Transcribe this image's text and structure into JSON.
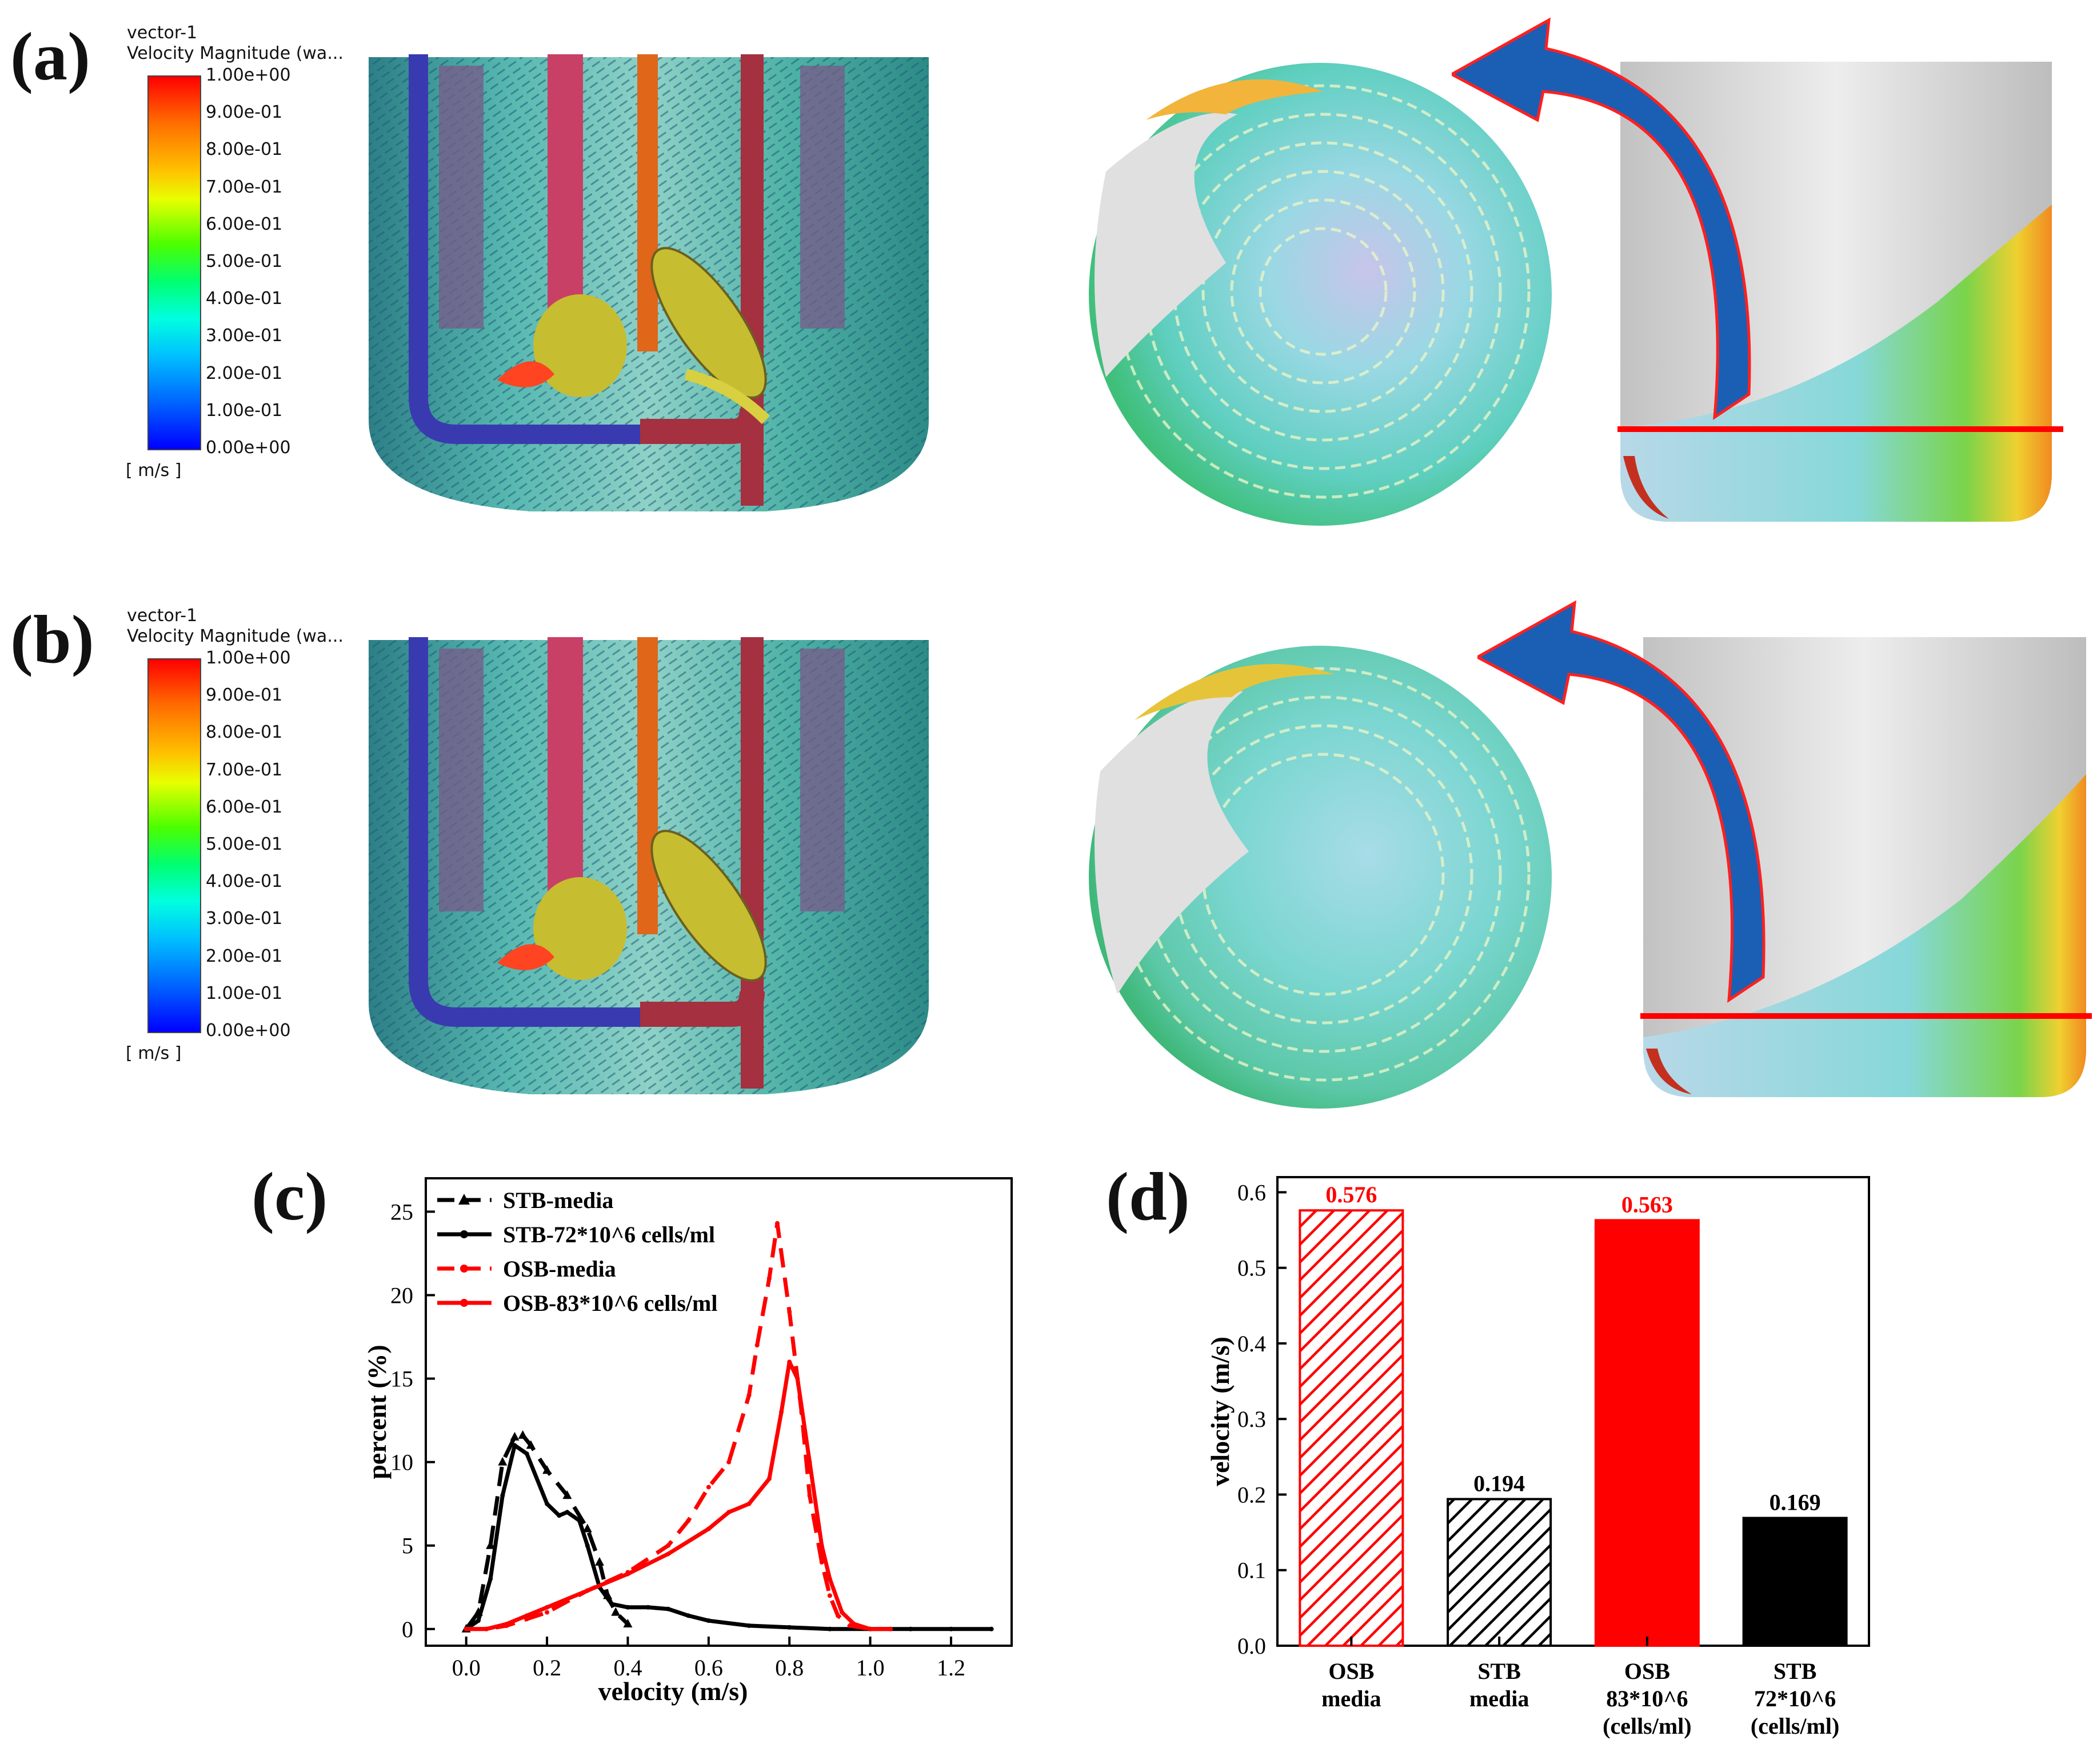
{
  "panels": {
    "a": {
      "label": "(a)"
    },
    "b": {
      "label": "(b)"
    },
    "c": {
      "label": "(c)"
    },
    "d": {
      "label": "(d)"
    }
  },
  "colorbar": {
    "title_line1": "vector-1",
    "title_line2": "Velocity Magnitude (wa...",
    "ticks": [
      "1.00e+00",
      "9.00e-01",
      "8.00e-01",
      "7.00e-01",
      "6.00e-01",
      "5.00e-01",
      "4.00e-01",
      "3.00e-01",
      "2.00e-01",
      "1.00e-01",
      "0.00e+00"
    ],
    "unit": "[ m/s ]"
  },
  "colors": {
    "black": "#000000",
    "red": "#ff0000",
    "arrow_blue": "#1a5fb4"
  },
  "chart_data": [
    {
      "id": "c",
      "type": "line",
      "xlabel": "velocity (m/s)",
      "ylabel": "percent (%)",
      "xlim": [
        -0.1,
        1.35
      ],
      "ylim": [
        -1,
        27
      ],
      "xticks": [
        "0.0",
        "0.2",
        "0.4",
        "0.6",
        "0.8",
        "1.0",
        "1.2"
      ],
      "yticks": [
        "0",
        "5",
        "10",
        "15",
        "20",
        "25"
      ],
      "series": [
        {
          "name": "STB-media",
          "color": "#000000",
          "style": "dashed-triangle",
          "x": [
            0,
            0.03,
            0.06,
            0.09,
            0.12,
            0.14,
            0.16,
            0.2,
            0.25,
            0.3,
            0.33,
            0.35,
            0.37,
            0.4
          ],
          "y": [
            0,
            1,
            5,
            10,
            11.5,
            11.6,
            11,
            9.5,
            8,
            6,
            4,
            2,
            1,
            0.3
          ]
        },
        {
          "name": "STB-72*10^6 cells/ml",
          "color": "#000000",
          "style": "solid",
          "x": [
            0,
            0.03,
            0.06,
            0.09,
            0.12,
            0.15,
            0.2,
            0.23,
            0.25,
            0.28,
            0.3,
            0.33,
            0.36,
            0.4,
            0.45,
            0.5,
            0.55,
            0.6,
            0.7,
            0.8,
            0.9,
            1.0,
            1.1,
            1.2,
            1.3
          ],
          "y": [
            0,
            0.5,
            3,
            8,
            11,
            10.5,
            7.5,
            6.8,
            7,
            6.5,
            5,
            2.5,
            1.5,
            1.3,
            1.3,
            1.2,
            0.8,
            0.5,
            0.2,
            0.1,
            0,
            0,
            0,
            0,
            0
          ]
        },
        {
          "name": "OSB-media",
          "color": "#ff0000",
          "style": "dashed",
          "x": [
            0,
            0.05,
            0.1,
            0.15,
            0.2,
            0.3,
            0.4,
            0.5,
            0.55,
            0.6,
            0.65,
            0.7,
            0.72,
            0.75,
            0.77,
            0.8,
            0.83,
            0.85,
            0.88,
            0.9,
            0.92,
            0.95,
            1.0,
            1.05
          ],
          "y": [
            0,
            0,
            0.2,
            0.6,
            1,
            2.3,
            3.4,
            5,
            6.5,
            8.5,
            10,
            14,
            17,
            21,
            24.3,
            19,
            13,
            8,
            4,
            2,
            0.8,
            0.2,
            0,
            0
          ]
        },
        {
          "name": "OSB-83*10^6 cells/ml",
          "color": "#ff0000",
          "style": "solid-dot",
          "x": [
            0,
            0.05,
            0.1,
            0.15,
            0.2,
            0.3,
            0.4,
            0.5,
            0.6,
            0.65,
            0.7,
            0.75,
            0.78,
            0.8,
            0.82,
            0.85,
            0.88,
            0.9,
            0.93,
            0.96,
            1.0,
            1.05
          ],
          "y": [
            0,
            0,
            0.3,
            0.8,
            1.3,
            2.3,
            3.3,
            4.5,
            6,
            7,
            7.5,
            9,
            13,
            16,
            15,
            10,
            5,
            3,
            1,
            0.3,
            0,
            0
          ]
        }
      ]
    },
    {
      "id": "d",
      "type": "bar",
      "ylabel": "velocity (m/s)",
      "ylim": [
        0,
        0.62
      ],
      "yticks": [
        "0.0",
        "0.1",
        "0.2",
        "0.3",
        "0.4",
        "0.5",
        "0.6"
      ],
      "categories": [
        {
          "line1": "OSB",
          "line2": "media",
          "line3": ""
        },
        {
          "line1": "STB",
          "line2": "media",
          "line3": ""
        },
        {
          "line1": "OSB",
          "line2": "83*10^6",
          "line3": "(cells/ml)"
        },
        {
          "line1": "STB",
          "line2": "72*10^6",
          "line3": "(cells/ml)"
        }
      ],
      "values": [
        0.576,
        0.194,
        0.563,
        0.169
      ],
      "value_labels": [
        "0.576",
        "0.194",
        "0.563",
        "0.169"
      ],
      "bar_colors": [
        "#ff0000",
        "#000000",
        "#ff0000",
        "#000000"
      ],
      "bar_patterns": [
        "hatch",
        "hatch",
        "solid",
        "solid"
      ]
    }
  ]
}
